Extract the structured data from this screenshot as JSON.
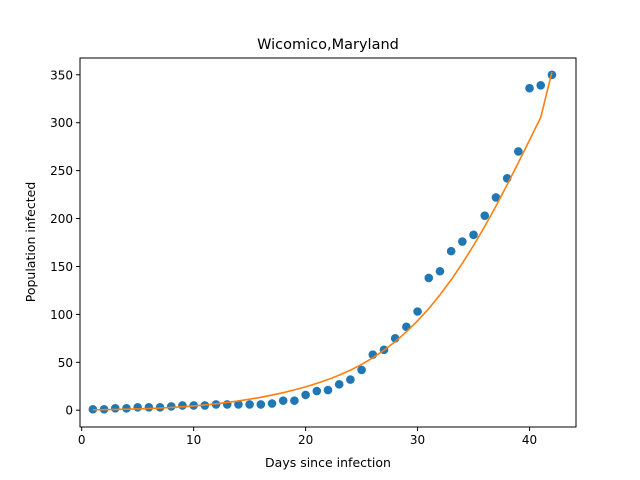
{
  "chart_data": {
    "type": "scatter",
    "title": "Wicomico,Maryland",
    "xlabel": "Days since infection",
    "ylabel": "Population infected",
    "xlim": [
      -0.15,
      44.15
    ],
    "ylim": [
      -17.5,
      367.5
    ],
    "xticks": [
      0,
      10,
      20,
      30,
      40
    ],
    "yticks": [
      0,
      50,
      100,
      150,
      200,
      250,
      300,
      350
    ],
    "grid": false,
    "legend": "none",
    "series": [
      {
        "kind": "scatter",
        "color": "#1f77b4",
        "x": [
          1,
          2,
          3,
          4,
          5,
          6,
          7,
          8,
          9,
          10,
          11,
          12,
          13,
          14,
          15,
          16,
          17,
          18,
          19,
          20,
          21,
          22,
          23,
          24,
          25,
          26,
          27,
          28,
          29,
          30,
          31,
          32,
          33,
          34,
          35,
          36,
          37,
          38,
          39,
          40,
          41,
          42
        ],
        "y": [
          1,
          1,
          2,
          2,
          3,
          3,
          3,
          4,
          5,
          5,
          5,
          6,
          6,
          6,
          6,
          6,
          7,
          10,
          10,
          16,
          20,
          21,
          27,
          32,
          42,
          58,
          63,
          75,
          87,
          103,
          138,
          145,
          166,
          176,
          183,
          203,
          222,
          242,
          270,
          336,
          339,
          350
        ]
      },
      {
        "kind": "line",
        "color": "#ff7f0e",
        "x": [
          1,
          2,
          3,
          4,
          5,
          6,
          7,
          8,
          9,
          10,
          11,
          12,
          13,
          14,
          15,
          16,
          17,
          18,
          19,
          20,
          21,
          22,
          23,
          24,
          25,
          26,
          27,
          28,
          29,
          30,
          31,
          32,
          33,
          34,
          35,
          36,
          37,
          38,
          39,
          40,
          41,
          42
        ],
        "y": [
          0.5,
          0.6,
          0.8,
          1.1,
          1.4,
          1.8,
          2.3,
          2.9,
          3.6,
          4.5,
          5.5,
          6.7,
          8.1,
          9.7,
          11.5,
          13.5,
          15.8,
          18.3,
          21.2,
          24.4,
          28.0,
          32.0,
          36.6,
          41.8,
          47.8,
          54.7,
          62.6,
          71.6,
          81.8,
          93.3,
          106.1,
          120.4,
          136.1,
          153.3,
          171.9,
          191.8,
          213.0,
          235.2,
          258.3,
          281.8,
          305.5,
          353.0
        ]
      }
    ]
  }
}
